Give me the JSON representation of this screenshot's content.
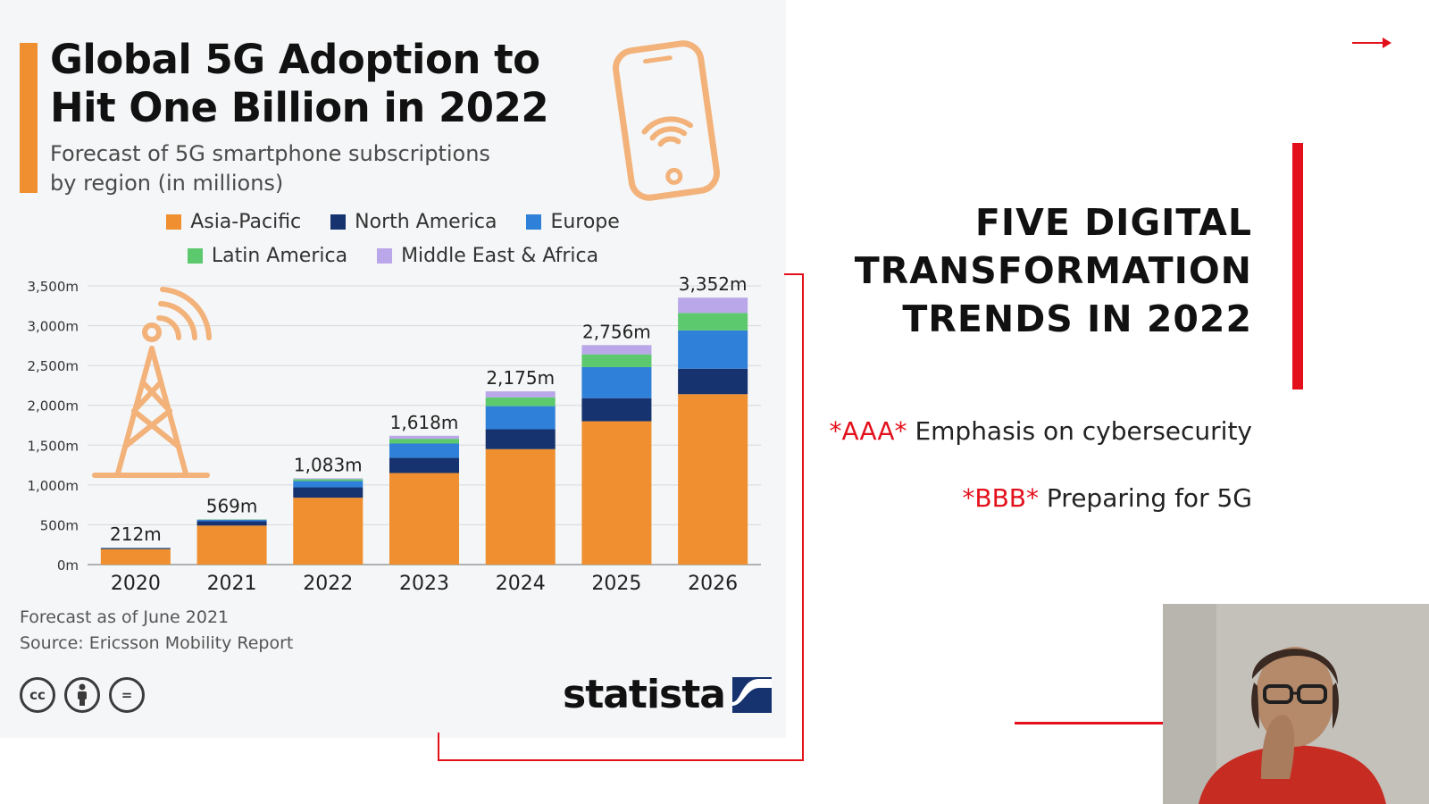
{
  "infographic": {
    "title_line1": "Global 5G Adoption to",
    "title_line2": "Hit One Billion in 2022",
    "subtitle_line1": "Forecast of 5G smartphone subscriptions",
    "subtitle_line2": "by region (in millions)",
    "footnote": "Forecast as of June 2021",
    "source": "Source: Ericsson Mobility Report",
    "brand": "statista",
    "license_icons": [
      "cc-icon",
      "by-icon",
      "nd-icon"
    ],
    "license_labels": [
      "cc",
      "",
      "="
    ],
    "accent_color": "#ef8f2f"
  },
  "chart_data": {
    "type": "bar",
    "stacked": true,
    "categories": [
      "2020",
      "2021",
      "2022",
      "2023",
      "2024",
      "2025",
      "2026"
    ],
    "series": [
      {
        "name": "Asia-Pacific",
        "color": "#ef8f2f",
        "values": [
          195,
          490,
          840,
          1150,
          1450,
          1800,
          2140
        ]
      },
      {
        "name": "North America",
        "color": "#16336f",
        "values": [
          12,
          55,
          130,
          190,
          250,
          290,
          320
        ]
      },
      {
        "name": "Europe",
        "color": "#2f80d8",
        "values": [
          3,
          18,
          80,
          180,
          290,
          390,
          480
        ]
      },
      {
        "name": "Latin America",
        "color": "#5cc96e",
        "values": [
          1,
          4,
          23,
          60,
          110,
          160,
          220
        ]
      },
      {
        "name": "Middle East & Africa",
        "color": "#b9a7e9",
        "values": [
          1,
          2,
          10,
          38,
          75,
          116,
          192
        ]
      }
    ],
    "totals_labels": [
      "212m",
      "569m",
      "1,083m",
      "1,618m",
      "2,175m",
      "2,756m",
      "3,352m"
    ],
    "totals": [
      212,
      569,
      1083,
      1618,
      2175,
      2756,
      3352
    ],
    "y_ticks": [
      "0m",
      "500m",
      "1,000m",
      "1,500m",
      "2,000m",
      "2,500m",
      "3,000m",
      "3,500m"
    ],
    "ylim": [
      0,
      3500
    ],
    "grid": true,
    "legend_position": "top"
  },
  "slide": {
    "title_line1": "FIVE DIGITAL",
    "title_line2": "TRANSFORMATION",
    "title_line3": "TRENDS IN 2022",
    "bullets": [
      {
        "tag": "*AAA*",
        "text": " Emphasis on cybersecurity"
      },
      {
        "tag": "*BBB*",
        "text": " Preparing for 5G"
      }
    ],
    "accent_color": "#e3101b"
  }
}
